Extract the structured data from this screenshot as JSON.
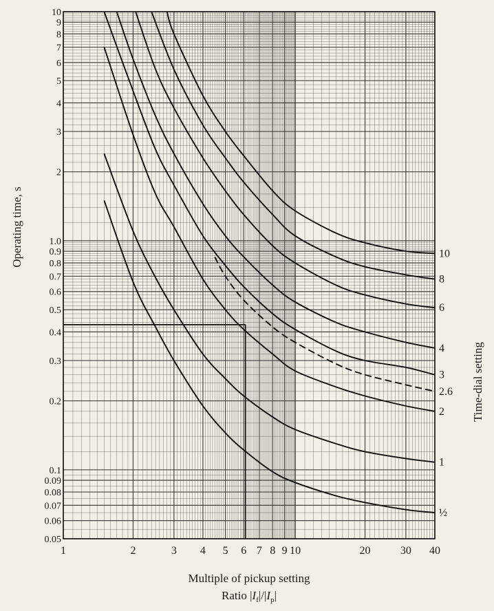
{
  "chart_data": {
    "type": "line",
    "xscale": "log",
    "yscale": "log",
    "xlim": [
      1,
      40
    ],
    "ylim": [
      0.05,
      10
    ],
    "xlabel": "Multiple of pickup setting",
    "xlabel2_prefix": "Ratio |",
    "xlabel2_i1": "I",
    "xlabel2_s1": "f",
    "xlabel2_mid": "|/|",
    "xlabel2_i2": "I",
    "xlabel2_s2": "p",
    "xlabel2_suffix": "|",
    "ylabel": "Operating time, s",
    "right_label": "Time-dial setting",
    "x_ticks": [
      1,
      2,
      3,
      4,
      5,
      6,
      7,
      8,
      9,
      10,
      20,
      30,
      40
    ],
    "x_tick_labels": [
      "1",
      "2",
      "3",
      "4",
      "5",
      "6",
      "7",
      "8",
      "9",
      "10",
      "20",
      "30",
      "40"
    ],
    "y_ticks": [
      0.05,
      0.06,
      0.07,
      0.08,
      0.09,
      0.1,
      0.2,
      0.3,
      0.4,
      0.5,
      0.6,
      0.7,
      0.8,
      0.9,
      1.0,
      2,
      3,
      4,
      5,
      6,
      7,
      8,
      9,
      10
    ],
    "y_tick_labels": [
      "0.05",
      "0.06",
      "0.07",
      "0.08",
      "0.09",
      "0.1",
      "0.2",
      "0.3",
      "0.4",
      "0.5",
      "0.6",
      "0.7",
      "0.8",
      "0.9",
      "1.0",
      "2",
      "3",
      "4",
      "5",
      "6",
      "7",
      "8",
      "9",
      "10"
    ],
    "grid": true,
    "series": [
      {
        "name": "½",
        "dashed": false,
        "x": [
          1.5,
          2,
          2.5,
          3,
          4,
          5,
          6,
          8,
          10,
          15,
          20,
          30,
          40
        ],
        "y": [
          1.5,
          0.66,
          0.42,
          0.3,
          0.19,
          0.145,
          0.122,
          0.098,
          0.088,
          0.077,
          0.072,
          0.067,
          0.065
        ]
      },
      {
        "name": "1",
        "dashed": false,
        "x": [
          1.5,
          2,
          2.5,
          3,
          4,
          5,
          6,
          8,
          10,
          15,
          20,
          30,
          40
        ],
        "y": [
          2.4,
          1.1,
          0.69,
          0.5,
          0.32,
          0.25,
          0.21,
          0.17,
          0.15,
          0.13,
          0.12,
          0.112,
          0.108
        ]
      },
      {
        "name": "2",
        "dashed": false,
        "x": [
          1.5,
          2,
          2.5,
          3,
          4,
          5,
          6,
          8,
          10,
          15,
          20,
          30,
          40
        ],
        "y": [
          7.0,
          2.9,
          1.6,
          1.15,
          0.68,
          0.5,
          0.41,
          0.32,
          0.27,
          0.23,
          0.21,
          0.19,
          0.18
        ]
      },
      {
        "name": "2.6",
        "dashed": true,
        "x": [
          4.5,
          5,
          6,
          8,
          10,
          15,
          20,
          30,
          40
        ],
        "y": [
          0.85,
          0.7,
          0.55,
          0.42,
          0.36,
          0.29,
          0.26,
          0.235,
          0.22
        ]
      },
      {
        "name": "3",
        "dashed": false,
        "x": [
          1.5,
          2,
          2.5,
          3,
          4,
          5,
          6,
          8,
          10,
          15,
          20,
          30,
          40
        ],
        "y": [
          10.0,
          4.5,
          2.5,
          1.75,
          1.05,
          0.78,
          0.63,
          0.48,
          0.41,
          0.33,
          0.3,
          0.28,
          0.26
        ]
      },
      {
        "name": "4",
        "dashed": false,
        "x": [
          1.7,
          2,
          2.5,
          3,
          4,
          5,
          6,
          8,
          10,
          15,
          20,
          30,
          40
        ],
        "y": [
          10.0,
          6.2,
          3.5,
          2.4,
          1.45,
          1.05,
          0.85,
          0.64,
          0.54,
          0.44,
          0.4,
          0.36,
          0.34
        ]
      },
      {
        "name": "6",
        "dashed": false,
        "x": [
          2.05,
          2.5,
          3,
          4,
          5,
          6,
          8,
          10,
          15,
          20,
          30,
          40
        ],
        "y": [
          10.0,
          5.6,
          3.8,
          2.3,
          1.65,
          1.3,
          0.95,
          0.8,
          0.64,
          0.58,
          0.53,
          0.51
        ]
      },
      {
        "name": "8",
        "dashed": false,
        "x": [
          2.4,
          3,
          4,
          5,
          6,
          8,
          10,
          15,
          20,
          30,
          40
        ],
        "y": [
          10.0,
          5.6,
          3.2,
          2.3,
          1.8,
          1.3,
          1.05,
          0.85,
          0.77,
          0.71,
          0.68
        ]
      },
      {
        "name": "10",
        "dashed": false,
        "x": [
          2.8,
          3,
          4,
          5,
          6,
          8,
          10,
          15,
          20,
          30,
          40
        ],
        "y": [
          10.0,
          8.0,
          4.3,
          3.0,
          2.35,
          1.65,
          1.35,
          1.08,
          0.98,
          0.9,
          0.88
        ]
      }
    ],
    "annotation_lines": [
      {
        "points": [
          [
            1,
            0.43
          ],
          [
            6.1,
            0.43
          ]
        ]
      },
      {
        "points": [
          [
            6.1,
            0.43
          ],
          [
            6.1,
            0.05
          ]
        ]
      }
    ]
  }
}
